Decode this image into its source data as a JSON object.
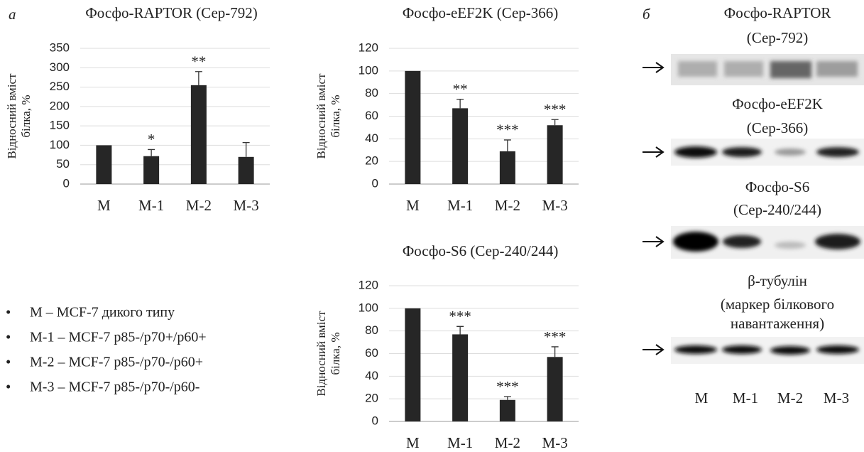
{
  "chart_data": [
    {
      "type": "bar",
      "title": "Фосфо-RAPTOR (Сер-792)",
      "ylabel": [
        "Відносний вміст",
        "білка, %"
      ],
      "categories": [
        "M",
        "M-1",
        "M-2",
        "M-3"
      ],
      "values": [
        100,
        72,
        255,
        70
      ],
      "errors": [
        null,
        17,
        35,
        37
      ],
      "annotations": [
        null,
        "*",
        "**",
        null
      ],
      "color": "#262626",
      "ylim": [
        0,
        350
      ],
      "yticks": [
        0,
        50,
        100,
        150,
        200,
        250,
        300,
        350
      ],
      "grid": true
    },
    {
      "type": "bar",
      "title": "Фосфо-eEF2K (Сер-366)",
      "ylabel": [
        "Відносний вміст",
        "білка, %"
      ],
      "categories": [
        "M",
        "M-1",
        "M-2",
        "M-3"
      ],
      "values": [
        100,
        67,
        29,
        52
      ],
      "errors": [
        null,
        8,
        10,
        5
      ],
      "annotations": [
        null,
        "**",
        "***",
        "***"
      ],
      "color": "#262626",
      "ylim": [
        0,
        120
      ],
      "yticks": [
        0,
        20,
        40,
        60,
        80,
        100,
        120
      ],
      "grid": true
    },
    {
      "type": "bar",
      "title": "Фосфо-S6 (Сер-240/244)",
      "ylabel": [
        "Відносний вміст",
        "білка, %"
      ],
      "categories": [
        "M",
        "M-1",
        "M-2",
        "M-3"
      ],
      "values": [
        100,
        77,
        19,
        57
      ],
      "errors": [
        null,
        7,
        3,
        9
      ],
      "annotations": [
        null,
        "***",
        "***",
        "***"
      ],
      "color": "#262626",
      "ylim": [
        0,
        120
      ],
      "yticks": [
        0,
        20,
        40,
        60,
        80,
        100,
        120
      ],
      "grid": true
    }
  ],
  "panel_labels": [
    "а",
    "б"
  ],
  "legend": [
    "M – MCF-7 дикого типу",
    "M-1 – MCF-7 p85-/p70+/p60+",
    "M-2 – MCF-7 p85-/p70-/p60+",
    "M-3 – MCF-7 p85-/p70-/p60-"
  ],
  "blot": {
    "labels": [
      [
        "Фосфо-RAPTOR",
        "(Сер-792)"
      ],
      [
        "Фосфо-eEF2K",
        "(Сер-366)"
      ],
      [
        "Фосфо-S6",
        "(Сер-240/244)"
      ],
      [
        "β-тубулін",
        "(маркер білкового",
        "навантаження)"
      ]
    ],
    "lanes": [
      "M",
      "M-1",
      "M-2",
      "M-3"
    ]
  }
}
